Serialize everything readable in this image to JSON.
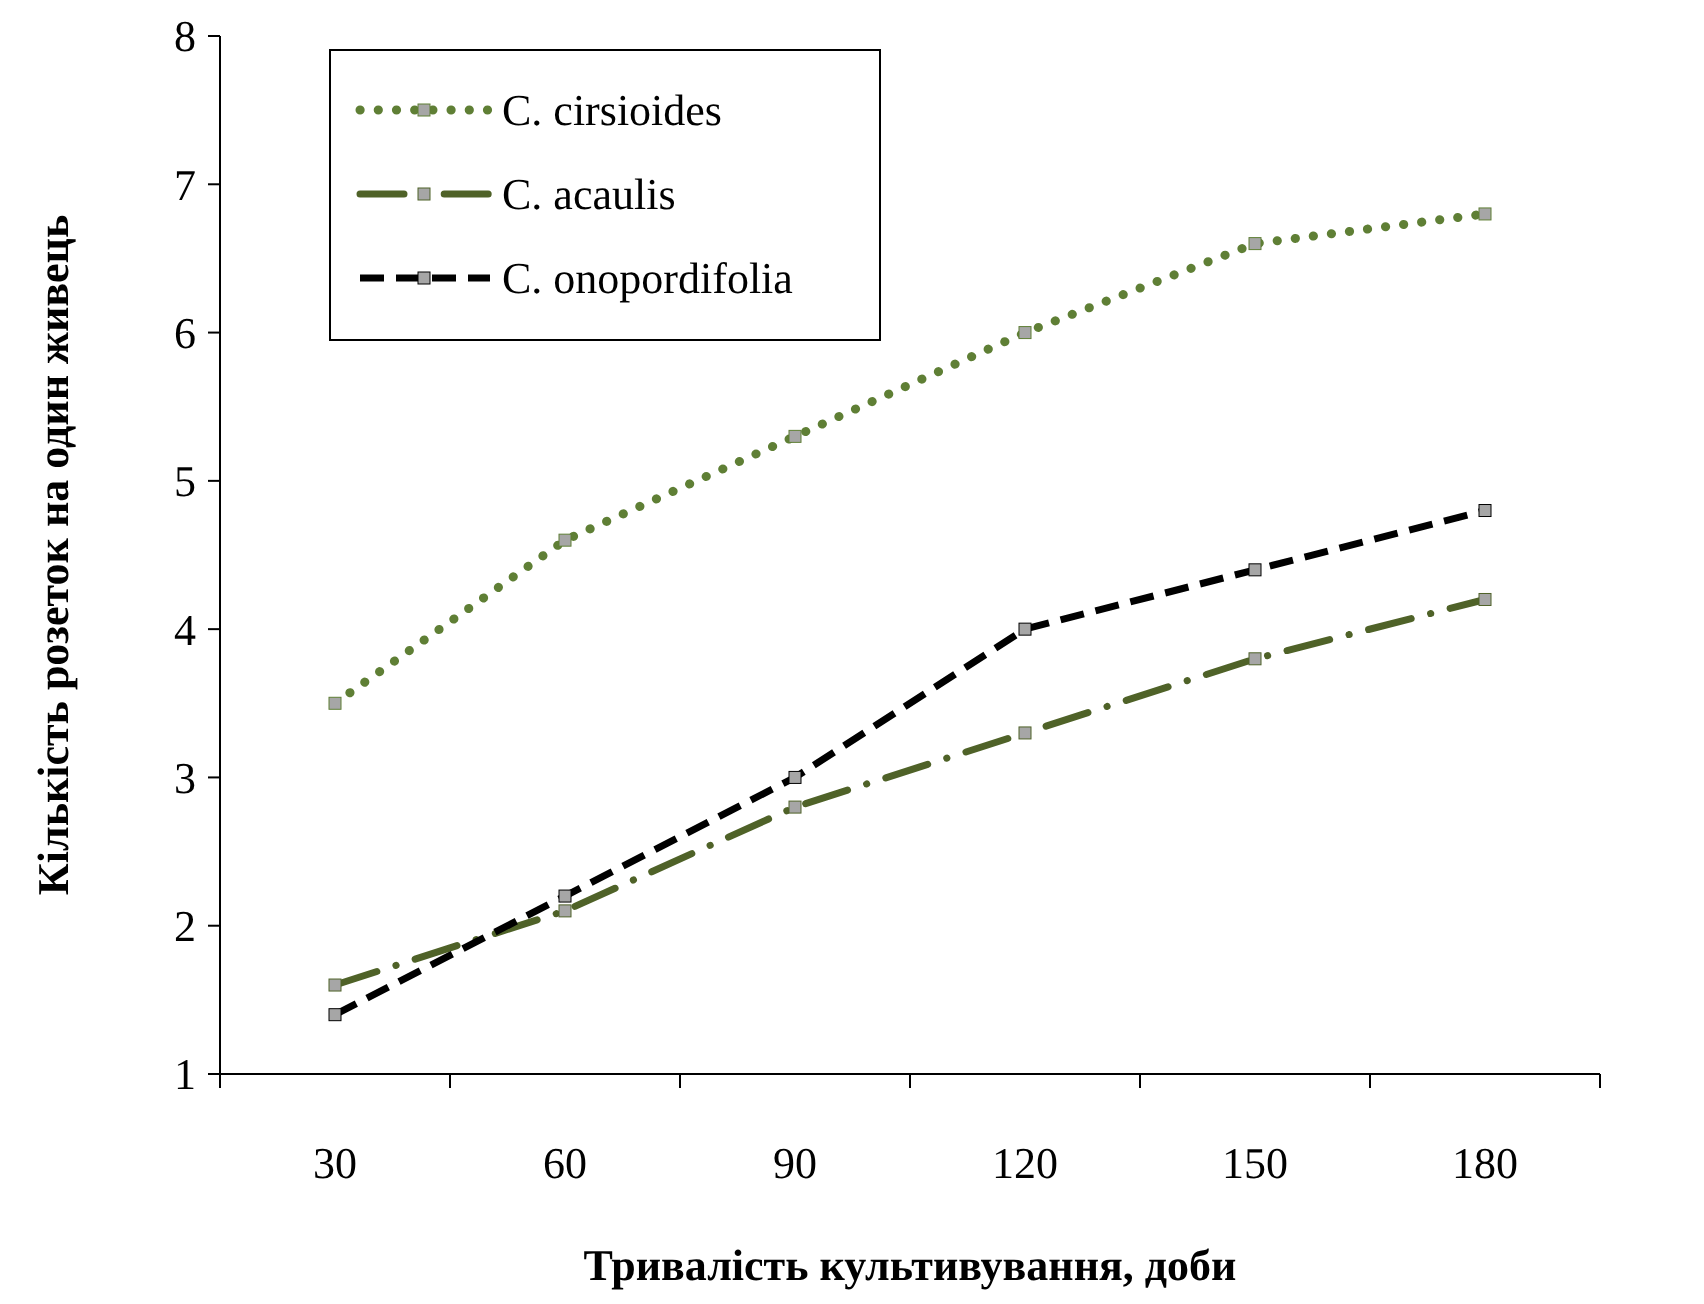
{
  "chart_data": {
    "type": "line",
    "xlabel": "Тривалість культивування, доби",
    "ylabel": "Кількість розеток на один живець",
    "categories": [
      "30",
      "60",
      "90",
      "120",
      "150",
      "180"
    ],
    "ylim": [
      1,
      8
    ],
    "yticks": [
      1,
      2,
      3,
      4,
      5,
      6,
      7,
      8
    ],
    "grid": false,
    "legend": "top left",
    "marker": "square",
    "series": [
      {
        "name": "C. cirsioides",
        "color": "#5f7f35",
        "line_style": "dotted",
        "values": [
          3.5,
          4.6,
          5.3,
          6.0,
          6.6,
          6.8
        ]
      },
      {
        "name": "C. acaulis",
        "color": "#4f6228",
        "line_style": "dashdot",
        "values": [
          1.6,
          2.1,
          2.8,
          3.3,
          3.8,
          4.2
        ]
      },
      {
        "name": "C. onopordifolia",
        "color": "#000000",
        "line_style": "dashed",
        "values": [
          1.4,
          2.2,
          3.0,
          4.0,
          4.4,
          4.8
        ]
      }
    ]
  }
}
